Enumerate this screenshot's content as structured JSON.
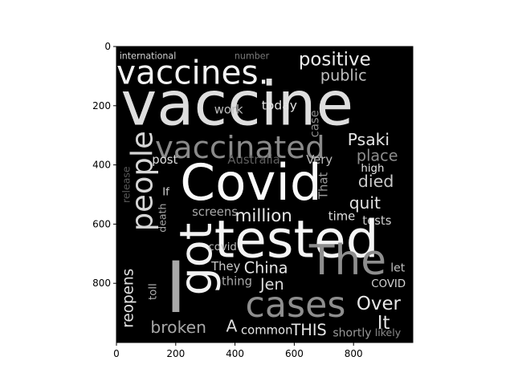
{
  "chart_data": {
    "type": "wordcloud-image",
    "title": "",
    "xlabel": "",
    "ylabel": "",
    "xlim": [
      0,
      1000
    ],
    "ylim": [
      1000,
      0
    ],
    "xticks": [
      0,
      200,
      400,
      600,
      800
    ],
    "yticks": [
      0,
      200,
      400,
      600,
      800
    ],
    "background": "#000000",
    "words": [
      {
        "text": "international",
        "x": 10,
        "y": 18,
        "size": 30,
        "gray": "#d4d4d4",
        "vertical": false
      },
      {
        "text": "number",
        "x": 398,
        "y": 18,
        "size": 30,
        "gray": "#7a7a7a",
        "vertical": false
      },
      {
        "text": "positive",
        "x": 615,
        "y": 15,
        "size": 62,
        "gray": "#ececec",
        "vertical": false
      },
      {
        "text": "vaccines.",
        "x": 0,
        "y": 40,
        "size": 110,
        "gray": "#f2f2f2",
        "vertical": false
      },
      {
        "text": "public",
        "x": 688,
        "y": 75,
        "size": 52,
        "gray": "#bfbfbf",
        "vertical": false
      },
      {
        "text": "vaccine",
        "x": 15,
        "y": 105,
        "size": 205,
        "gray": "#dedede",
        "vertical": false
      },
      {
        "text": "work",
        "x": 330,
        "y": 195,
        "size": 40,
        "gray": "#bdbdbd",
        "vertical": false
      },
      {
        "text": "today",
        "x": 490,
        "y": 180,
        "size": 42,
        "gray": "#e5e5e5",
        "vertical": false
      },
      {
        "text": "case",
        "x": 650,
        "y": 215,
        "size": 40,
        "gray": "#8a8a8a",
        "vertical": true
      },
      {
        "text": "vaccinated",
        "x": 130,
        "y": 295,
        "size": 105,
        "gray": "#8a8a8a",
        "vertical": false
      },
      {
        "text": "people",
        "x": 40,
        "y": 285,
        "size": 100,
        "gray": "#d6d6d6",
        "vertical": true
      },
      {
        "text": "Psaki",
        "x": 780,
        "y": 290,
        "size": 55,
        "gray": "#e6e6e6",
        "vertical": false
      },
      {
        "text": "place",
        "x": 810,
        "y": 345,
        "size": 52,
        "gray": "#8e8e8e",
        "vertical": false
      },
      {
        "text": "post",
        "x": 120,
        "y": 365,
        "size": 40,
        "gray": "#e0e0e0",
        "vertical": false
      },
      {
        "text": "Australia",
        "x": 375,
        "y": 365,
        "size": 40,
        "gray": "#5e5e5e",
        "vertical": false
      },
      {
        "text": "Very",
        "x": 640,
        "y": 365,
        "size": 40,
        "gray": "#bdbdbd",
        "vertical": false
      },
      {
        "text": "high",
        "x": 825,
        "y": 395,
        "size": 36,
        "gray": "#e6e6e6",
        "vertical": false
      },
      {
        "text": "Covid",
        "x": 215,
        "y": 385,
        "size": 170,
        "gray": "#fafafa",
        "vertical": false
      },
      {
        "text": "died",
        "x": 815,
        "y": 430,
        "size": 56,
        "gray": "#c9c9c9",
        "vertical": false
      },
      {
        "text": "That",
        "x": 680,
        "y": 425,
        "size": 40,
        "gray": "#9a9a9a",
        "vertical": true
      },
      {
        "text": "release",
        "x": 18,
        "y": 405,
        "size": 34,
        "gray": "#5a5a5a",
        "vertical": true
      },
      {
        "text": "If",
        "x": 155,
        "y": 475,
        "size": 36,
        "gray": "#d0d0d0",
        "vertical": false
      },
      {
        "text": "quit",
        "x": 785,
        "y": 505,
        "size": 55,
        "gray": "#e2e2e2",
        "vertical": false
      },
      {
        "text": "screens",
        "x": 255,
        "y": 540,
        "size": 40,
        "gray": "#a8a8a8",
        "vertical": false
      },
      {
        "text": "million",
        "x": 400,
        "y": 545,
        "size": 58,
        "gray": "#e8e8e8",
        "vertical": false
      },
      {
        "text": "time",
        "x": 715,
        "y": 555,
        "size": 40,
        "gray": "#e0e0e0",
        "vertical": false
      },
      {
        "text": "tests",
        "x": 830,
        "y": 570,
        "size": 40,
        "gray": "#d0d0d0",
        "vertical": false
      },
      {
        "text": "death",
        "x": 140,
        "y": 530,
        "size": 34,
        "gray": "#a8a8a8",
        "vertical": true
      },
      {
        "text": "got",
        "x": 200,
        "y": 595,
        "size": 150,
        "gray": "#f2f2f2",
        "vertical": true
      },
      {
        "text": "tested",
        "x": 330,
        "y": 575,
        "size": 175,
        "gray": "#f5f5f5",
        "vertical": false
      },
      {
        "text": "covid",
        "x": 310,
        "y": 660,
        "size": 36,
        "gray": "#bdbdbd",
        "vertical": false
      },
      {
        "text": "They",
        "x": 320,
        "y": 725,
        "size": 40,
        "gray": "#c9c9c9",
        "vertical": false
      },
      {
        "text": "China",
        "x": 430,
        "y": 725,
        "size": 52,
        "gray": "#e6e6e6",
        "vertical": false
      },
      {
        "text": "The",
        "x": 650,
        "y": 660,
        "size": 140,
        "gray": "#8e8e8e",
        "vertical": false
      },
      {
        "text": "let",
        "x": 925,
        "y": 730,
        "size": 38,
        "gray": "#c0c0c0",
        "vertical": false
      },
      {
        "text": "reopens",
        "x": 15,
        "y": 750,
        "size": 50,
        "gray": "#e2e2e2",
        "vertical": true
      },
      {
        "text": "toll",
        "x": 105,
        "y": 800,
        "size": 36,
        "gray": "#b0b0b0",
        "vertical": true
      },
      {
        "text": "I",
        "x": 165,
        "y": 710,
        "size": 240,
        "gray": "#a8a8a8",
        "vertical": false
      },
      {
        "text": "thing",
        "x": 355,
        "y": 775,
        "size": 40,
        "gray": "#a8a8a8",
        "vertical": false
      },
      {
        "text": "Jen",
        "x": 485,
        "y": 780,
        "size": 52,
        "gray": "#dcdcdc",
        "vertical": false
      },
      {
        "text": "COVID",
        "x": 860,
        "y": 785,
        "size": 36,
        "gray": "#d4d4d4",
        "vertical": false
      },
      {
        "text": "Over",
        "x": 810,
        "y": 840,
        "size": 62,
        "gray": "#e8e8e8",
        "vertical": false
      },
      {
        "text": "cases",
        "x": 435,
        "y": 820,
        "size": 120,
        "gray": "#8e8e8e",
        "vertical": false
      },
      {
        "text": "It",
        "x": 880,
        "y": 905,
        "size": 62,
        "gray": "#e0e0e0",
        "vertical": false
      },
      {
        "text": "broken",
        "x": 115,
        "y": 925,
        "size": 55,
        "gray": "#a8a8a8",
        "vertical": false
      },
      {
        "text": "A",
        "x": 370,
        "y": 920,
        "size": 55,
        "gray": "#dcdcdc",
        "vertical": false
      },
      {
        "text": "common",
        "x": 420,
        "y": 940,
        "size": 40,
        "gray": "#e6e6e6",
        "vertical": false
      },
      {
        "text": "THIS",
        "x": 590,
        "y": 935,
        "size": 52,
        "gray": "#e6e6e6",
        "vertical": false
      },
      {
        "text": "shortly",
        "x": 730,
        "y": 950,
        "size": 38,
        "gray": "#9a9a9a",
        "vertical": false
      },
      {
        "text": "likely",
        "x": 872,
        "y": 952,
        "size": 34,
        "gray": "#8a8a8a",
        "vertical": false
      }
    ]
  }
}
